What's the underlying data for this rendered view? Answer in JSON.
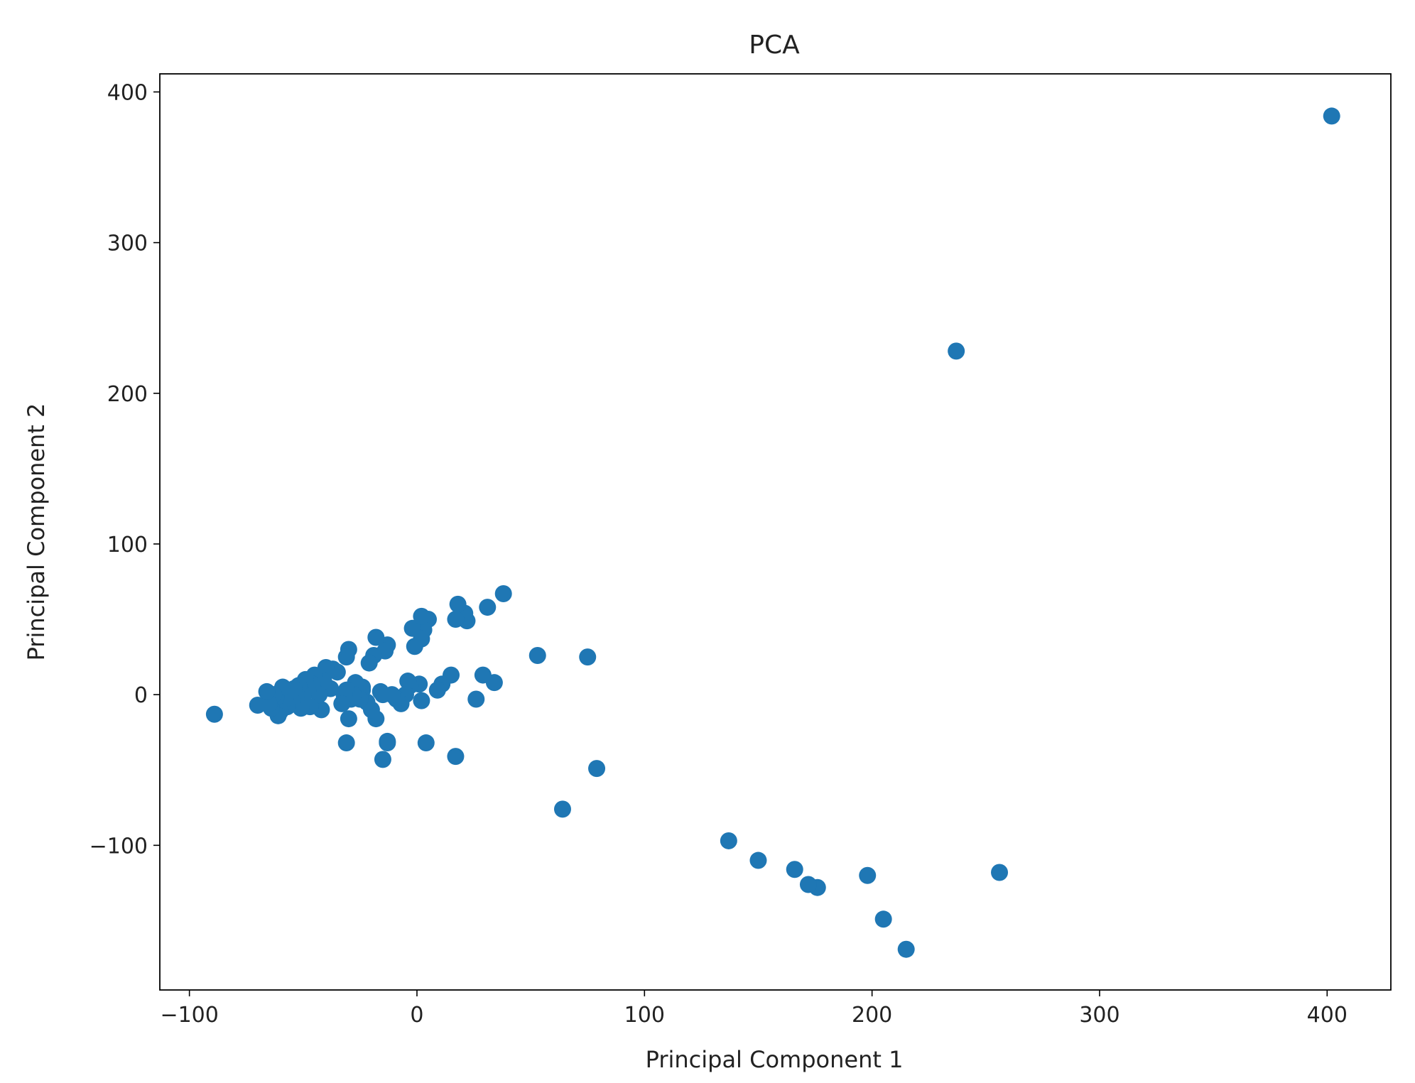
{
  "chart_data": {
    "type": "scatter",
    "title": "PCA",
    "xlabel": "Principal Component 1",
    "ylabel": "Principal Component 2",
    "xlim": [
      -113,
      428
    ],
    "ylim": [
      -196,
      412
    ],
    "xticks": [
      -100,
      0,
      100,
      200,
      300,
      400
    ],
    "yticks": [
      -100,
      0,
      100,
      200,
      300,
      400
    ],
    "xtick_labels": [
      "−100",
      "0",
      "100",
      "200",
      "300",
      "400"
    ],
    "ytick_labels": [
      "−100",
      "0",
      "100",
      "200",
      "300",
      "400"
    ],
    "grid": false,
    "legend": "none",
    "marker_color": "#1f77b4",
    "series": [
      {
        "x": [
          402,
          237,
          256,
          215,
          205,
          198,
          176,
          172,
          166,
          150,
          137,
          79,
          75,
          64,
          53,
          38,
          34,
          31,
          29,
          26,
          22,
          21,
          18,
          17,
          15,
          11,
          9,
          5,
          3,
          2,
          2,
          1,
          -1,
          -2,
          -3,
          -4,
          -5,
          -7,
          -9,
          -11,
          -13,
          -13,
          -14,
          -15,
          -16,
          -18,
          -18,
          -19,
          -20,
          -21,
          -22,
          -24,
          -24,
          -25,
          -27,
          -28,
          -29,
          -30,
          -30,
          -31,
          -31,
          -31,
          -32,
          -33,
          -35,
          -37,
          -38,
          -40,
          -41,
          -42,
          -43,
          -45,
          -46,
          -47,
          -48,
          -49,
          -50,
          -51,
          -52,
          -53,
          -54,
          -55,
          -56,
          -57,
          -58,
          -59,
          -60,
          -61,
          -62,
          -63,
          -64,
          -65,
          -66,
          -70,
          -89,
          -13,
          2,
          17,
          -15,
          4
        ],
        "y": [
          384,
          228,
          -118,
          -169,
          -149,
          -120,
          -128,
          -126,
          -116,
          -110,
          -97,
          -49,
          25,
          -76,
          26,
          67,
          8,
          58,
          13,
          -3,
          49,
          54,
          60,
          50,
          13,
          7,
          3,
          50,
          43,
          37,
          -4,
          7,
          32,
          44,
          6,
          9,
          0,
          -6,
          -3,
          0,
          33,
          -31,
          29,
          -43,
          2,
          38,
          -16,
          26,
          -10,
          21,
          -5,
          3,
          5,
          -3,
          8,
          0,
          -3,
          30,
          -16,
          25,
          -32,
          3,
          0,
          -6,
          15,
          17,
          4,
          18,
          9,
          -10,
          0,
          13,
          7,
          -8,
          3,
          10,
          -1,
          -9,
          6,
          0,
          4,
          -4,
          2,
          -8,
          -3,
          5,
          -11,
          -14,
          -2,
          0,
          -9,
          -6,
          2,
          -7,
          -13,
          -32,
          52,
          -41,
          0,
          -32
        ]
      }
    ]
  }
}
